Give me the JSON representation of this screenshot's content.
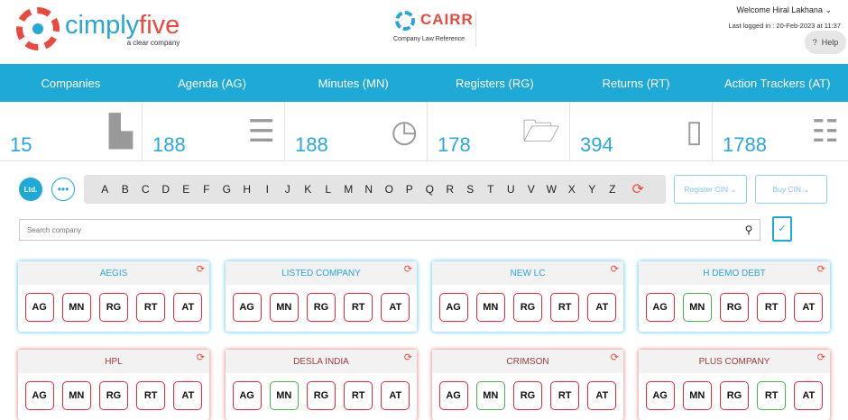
{
  "header": {
    "brand": "cimply",
    "brand_accent": "five",
    "tagline": "a clear company",
    "cairr_title": "CAIRR",
    "cairr_sub": "Company Law Reference",
    "welcome": "Welcome Hiral  Lakhana",
    "last_logged": "Last logged in : 20-Feb-2023 at 11:37",
    "help": "Help",
    "help_icon": "?"
  },
  "nav": [
    "Companies",
    "Agenda (AG)",
    "Minutes (MN)",
    "Registers (RG)",
    "Returns (RT)",
    "Action Trackers (AT)"
  ],
  "stats": [
    {
      "value": "15",
      "icon": "building-icon"
    },
    {
      "value": "188",
      "icon": "list-icon"
    },
    {
      "value": "188",
      "icon": "clock-icon"
    },
    {
      "value": "178",
      "icon": "folder-icon"
    },
    {
      "value": "394",
      "icon": "document-icon"
    },
    {
      "value": "1788",
      "icon": "tracker-icon"
    }
  ],
  "filter": {
    "ltd": "Ltd.",
    "more": "•••",
    "letters": [
      "A",
      "B",
      "C",
      "D",
      "E",
      "F",
      "G",
      "H",
      "I",
      "J",
      "K",
      "L",
      "M",
      "N",
      "O",
      "P",
      "Q",
      "R",
      "S",
      "T",
      "U",
      "V",
      "W",
      "X",
      "Y",
      "Z"
    ],
    "register_cin": "Register CIN",
    "buy_cin": "Buy CIN"
  },
  "search": {
    "placeholder": "Search company"
  },
  "colors": {
    "accent": "#1fa9d6",
    "red": "#e8283a",
    "green": "#4caf50"
  },
  "companies": [
    {
      "name": "AEGIS",
      "theme": "blue",
      "green": []
    },
    {
      "name": "LISTED COMPANY",
      "theme": "blue",
      "green": []
    },
    {
      "name": "NEW LC",
      "theme": "blue",
      "green": []
    },
    {
      "name": "H DEMO DEBT",
      "theme": "blue",
      "green": [
        "MN"
      ]
    },
    {
      "name": "HPL",
      "theme": "red",
      "green": []
    },
    {
      "name": "DESLA INDIA",
      "theme": "red",
      "green": [
        "MN"
      ]
    },
    {
      "name": "CRIMSON",
      "theme": "red",
      "green": [
        "MN"
      ]
    },
    {
      "name": "PLUS COMPANY",
      "theme": "red",
      "green": [
        "RT"
      ]
    }
  ],
  "modules": [
    "AG",
    "MN",
    "RG",
    "RT",
    "AT"
  ]
}
